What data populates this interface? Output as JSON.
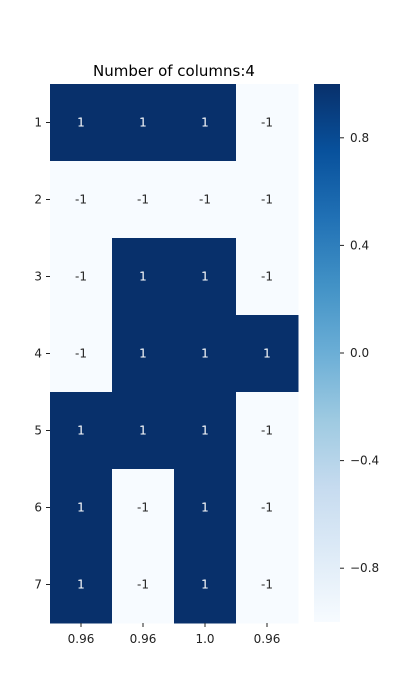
{
  "chart_data": {
    "type": "heatmap",
    "title": "Number of columns:4",
    "x_tick_labels": [
      "0.96",
      "0.96",
      "1.0",
      "0.96"
    ],
    "y_tick_labels": [
      "1",
      "2",
      "3",
      "4",
      "5",
      "6",
      "7"
    ],
    "values": [
      [
        1,
        1,
        1,
        -1
      ],
      [
        -1,
        -1,
        -1,
        -1
      ],
      [
        -1,
        1,
        1,
        -1
      ],
      [
        -1,
        1,
        1,
        1
      ],
      [
        1,
        1,
        1,
        -1
      ],
      [
        1,
        -1,
        1,
        -1
      ],
      [
        1,
        -1,
        1,
        -1
      ]
    ],
    "cell_labels": [
      [
        "1",
        "1",
        "1",
        "-1"
      ],
      [
        "-1",
        "-1",
        "-1",
        "-1"
      ],
      [
        "-1",
        "1",
        "1",
        "-1"
      ],
      [
        "-1",
        "1",
        "1",
        "1"
      ],
      [
        "1",
        "1",
        "1",
        "-1"
      ],
      [
        "1",
        "-1",
        "1",
        "-1"
      ],
      [
        "1",
        "-1",
        "1",
        "-1"
      ]
    ],
    "colormap": "Blues",
    "vmin": -1,
    "vmax": 1,
    "colorbar_ticks": [
      "0.8",
      "0.4",
      "0.0",
      "−0.4",
      "−0.8"
    ],
    "colorbar_tick_values": [
      0.8,
      0.4,
      0.0,
      -0.4,
      -0.8
    ],
    "colors": {
      "high": "#08306b",
      "low": "#f7fbff",
      "text_on_dark": "#ffffff",
      "text_on_light": "#262626"
    }
  }
}
